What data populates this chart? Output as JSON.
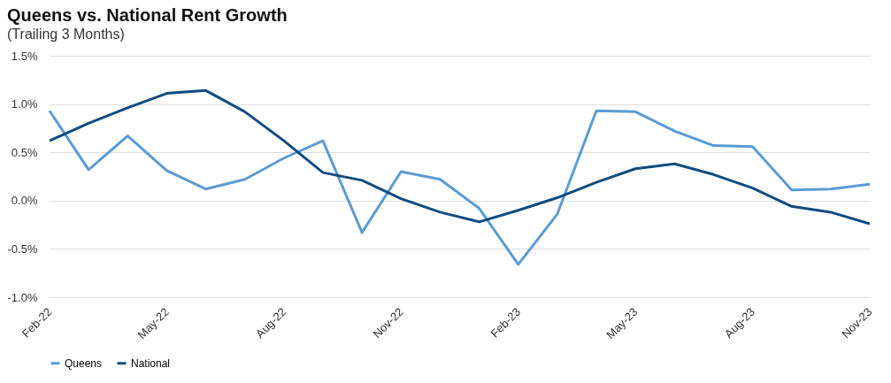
{
  "chart_data": {
    "type": "line",
    "title": "Queens vs. National Rent Growth",
    "subtitle": "(Trailing 3 Months)",
    "categories": [
      "Feb-22",
      null,
      null,
      "May-22",
      null,
      null,
      "Aug-22",
      null,
      null,
      "Nov-22",
      null,
      null,
      "Feb-23",
      null,
      null,
      "May-23",
      null,
      null,
      "Aug-23",
      null,
      null,
      "Nov-23"
    ],
    "series": [
      {
        "name": "Queens",
        "color": "#5b9bd5",
        "values": [
          0.93,
          0.32,
          0.67,
          0.31,
          0.12,
          0.22,
          0.44,
          0.62,
          -0.33,
          0.3,
          0.22,
          -0.08,
          -0.66,
          -0.14,
          0.93,
          0.92,
          0.72,
          0.57,
          0.56,
          0.11,
          0.12,
          0.17
        ]
      },
      {
        "name": "National",
        "color": "#0f4c81",
        "values": [
          0.62,
          0.8,
          0.96,
          1.11,
          1.14,
          0.92,
          0.62,
          0.29,
          0.21,
          0.02,
          -0.12,
          -0.22,
          -0.1,
          0.03,
          0.19,
          0.33,
          0.38,
          0.27,
          0.13,
          -0.06,
          -0.12,
          -0.24
        ]
      }
    ],
    "ylim": [
      -1.0,
      1.5
    ],
    "yticks": [
      {
        "value": -1.0,
        "label": "-1.0%"
      },
      {
        "value": -0.5,
        "label": "-0.5%"
      },
      {
        "value": 0.0,
        "label": "0.0%"
      },
      {
        "value": 0.5,
        "label": "0.5%"
      },
      {
        "value": 1.0,
        "label": "1.0%"
      },
      {
        "value": 1.5,
        "label": "1.5%"
      }
    ],
    "grid": "y",
    "legend": "bottom",
    "marker": "none",
    "line_style": "solid"
  }
}
